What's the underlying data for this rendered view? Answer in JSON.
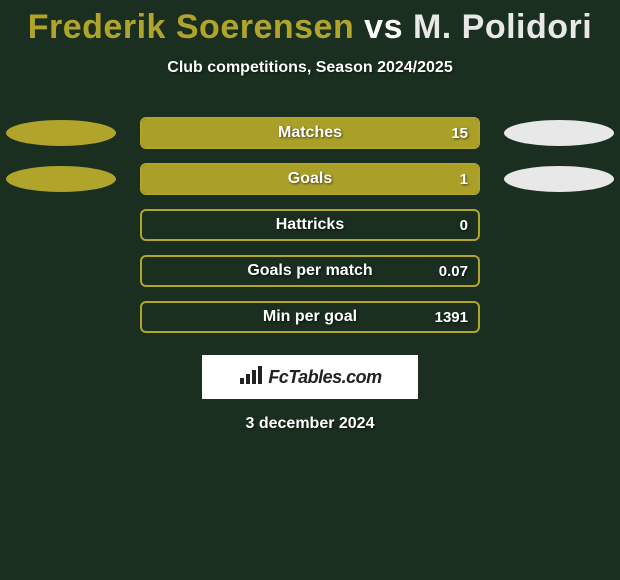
{
  "title": {
    "parts": [
      {
        "text": "Frederik Soerensen",
        "color": "#b0a52a"
      },
      {
        "text": " vs ",
        "color": "#ffffff"
      },
      {
        "text": "M. Polidori",
        "color": "#e8e8e8"
      }
    ]
  },
  "subtitle": "Club competitions, Season 2024/2025",
  "background_color": "#1a2f1f",
  "ellipse_left_color": "#b0a52a",
  "ellipse_right_color": "#e8e8e8",
  "bar_border_color": "#b0a52a",
  "bar_fill_color": "#aaa028",
  "stats": [
    {
      "label": "Matches",
      "value": "15",
      "fill_pct": 100,
      "show_ellipses": true
    },
    {
      "label": "Goals",
      "value": "1",
      "fill_pct": 100,
      "show_ellipses": true
    },
    {
      "label": "Hattricks",
      "value": "0",
      "fill_pct": 0,
      "show_ellipses": false
    },
    {
      "label": "Goals per match",
      "value": "0.07",
      "fill_pct": 0,
      "show_ellipses": false
    },
    {
      "label": "Min per goal",
      "value": "1391",
      "fill_pct": 0,
      "show_ellipses": false
    }
  ],
  "logo_text": "FcTables.com",
  "date": "3 december 2024"
}
